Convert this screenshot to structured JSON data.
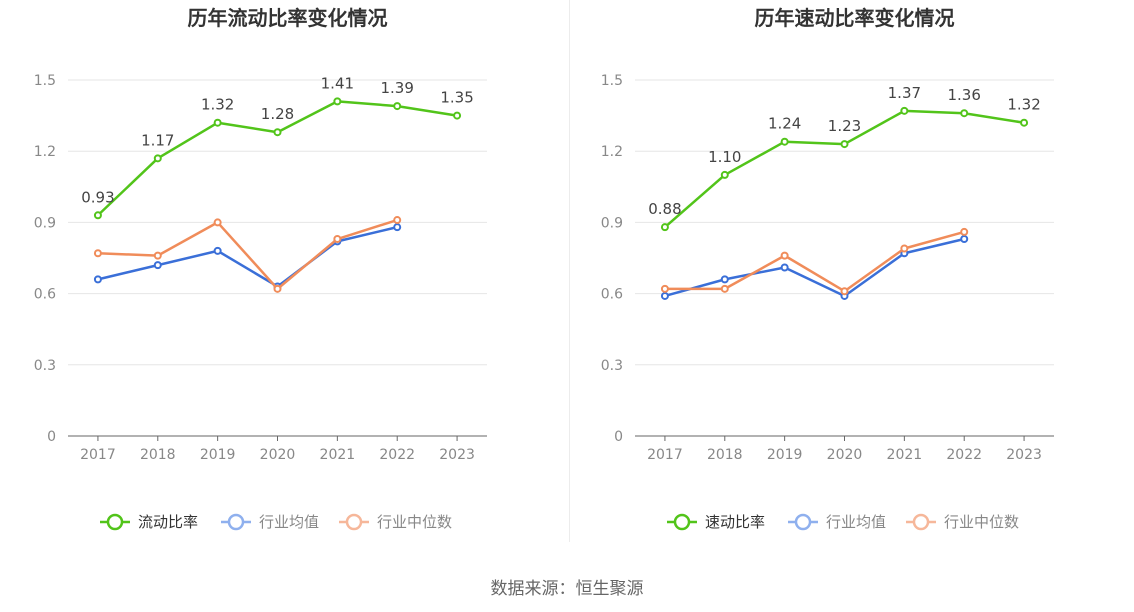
{
  "chart_data": [
    {
      "type": "line",
      "title": "历年流动比率变化情况",
      "categories": [
        "2017",
        "2018",
        "2019",
        "2020",
        "2021",
        "2022",
        "2023"
      ],
      "y_ticks": [
        "0",
        "0.3",
        "0.6",
        "0.9",
        "1.2",
        "1.5"
      ],
      "ylim": [
        0,
        1.5
      ],
      "grid": true,
      "legend_position": "bottom",
      "series": [
        {
          "name": "流动比率",
          "color": "#52c41a",
          "values": [
            0.93,
            1.17,
            1.32,
            1.28,
            1.41,
            1.39,
            1.35
          ],
          "labels": [
            "0.93",
            "1.17",
            "1.32",
            "1.28",
            "1.41",
            "1.39",
            "1.35"
          ]
        },
        {
          "name": "行业均值",
          "color": "#3a6fd8",
          "values": [
            0.66,
            0.72,
            0.78,
            0.63,
            0.82,
            0.88,
            null
          ]
        },
        {
          "name": "行业中位数",
          "color": "#f08c5a",
          "values": [
            0.77,
            0.76,
            0.9,
            0.62,
            0.83,
            0.91,
            null
          ]
        }
      ]
    },
    {
      "type": "line",
      "title": "历年速动比率变化情况",
      "categories": [
        "2017",
        "2018",
        "2019",
        "2020",
        "2021",
        "2022",
        "2023"
      ],
      "y_ticks": [
        "0",
        "0.3",
        "0.6",
        "0.9",
        "1.2",
        "1.5"
      ],
      "ylim": [
        0,
        1.5
      ],
      "grid": true,
      "legend_position": "bottom",
      "series": [
        {
          "name": "速动比率",
          "color": "#52c41a",
          "values": [
            0.88,
            1.1,
            1.24,
            1.23,
            1.37,
            1.36,
            1.32
          ],
          "labels": [
            "0.88",
            "1.10",
            "1.24",
            "1.23",
            "1.37",
            "1.36",
            "1.32"
          ]
        },
        {
          "name": "行业均值",
          "color": "#3a6fd8",
          "values": [
            0.59,
            0.66,
            0.71,
            0.59,
            0.77,
            0.83,
            null
          ]
        },
        {
          "name": "行业中位数",
          "color": "#f08c5a",
          "values": [
            0.62,
            0.62,
            0.76,
            0.61,
            0.79,
            0.86,
            null
          ]
        }
      ]
    }
  ],
  "legend_colors": {
    "active_text": "#333333",
    "inactive_text": "#888888",
    "blue_light": "#8fb0ee",
    "orange_light": "#f6b79a"
  },
  "footer": {
    "source": "数据来源：恒生聚源"
  }
}
